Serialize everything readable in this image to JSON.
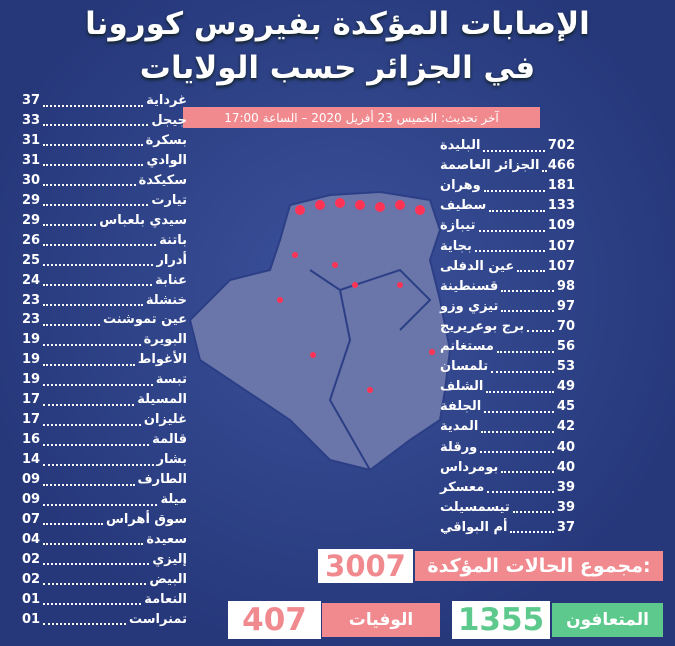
{
  "header": {
    "title_line1": "الإصابات المؤكدة بفيروس كورونا",
    "title_line2": "في الجزائر حسب الولايات",
    "update": "آخر تحديث: الخميس 23 أفريل 2020 – الساعة 17:00"
  },
  "right_list": [
    {
      "name": "البليدة",
      "count": "702"
    },
    {
      "name": "الجزائر العاصمة",
      "count": "466"
    },
    {
      "name": "وهران",
      "count": "181"
    },
    {
      "name": "سطيف",
      "count": "133"
    },
    {
      "name": "تيبازة",
      "count": "109"
    },
    {
      "name": "بجاية",
      "count": "107"
    },
    {
      "name": "عين الدفلى",
      "count": "107"
    },
    {
      "name": "قسنطينة",
      "count": "98"
    },
    {
      "name": "تيزي وزو",
      "count": "97"
    },
    {
      "name": "برج بوعريريج",
      "count": "70"
    },
    {
      "name": "مستغانم",
      "count": "56"
    },
    {
      "name": "تلمسان",
      "count": "53"
    },
    {
      "name": "الشلف",
      "count": "49"
    },
    {
      "name": "الجلفة",
      "count": "45"
    },
    {
      "name": "المدية",
      "count": "42"
    },
    {
      "name": "ورقلة",
      "count": "40"
    },
    {
      "name": "بومرداس",
      "count": "40"
    },
    {
      "name": "معسكر",
      "count": "39"
    },
    {
      "name": "تيسمسيلت",
      "count": "39"
    },
    {
      "name": "أم البواقي",
      "count": "37"
    }
  ],
  "left_list": [
    {
      "name": "غرداية",
      "count": "37"
    },
    {
      "name": "جيجل",
      "count": "33"
    },
    {
      "name": "بسكرة",
      "count": "31"
    },
    {
      "name": "الوادي",
      "count": "31"
    },
    {
      "name": "سكيكدة",
      "count": "30"
    },
    {
      "name": "تيارت",
      "count": "29"
    },
    {
      "name": "سيدي بلعباس",
      "count": "29"
    },
    {
      "name": "باتنة",
      "count": "26"
    },
    {
      "name": "أدرار",
      "count": "25"
    },
    {
      "name": "عنابة",
      "count": "24"
    },
    {
      "name": "خنشلة",
      "count": "23"
    },
    {
      "name": "عين تموشنت",
      "count": "23"
    },
    {
      "name": "البويرة",
      "count": "19"
    },
    {
      "name": "الأغواط",
      "count": "19"
    },
    {
      "name": "تبسة",
      "count": "19"
    },
    {
      "name": "المسيلة",
      "count": "17"
    },
    {
      "name": "غليزان",
      "count": "17"
    },
    {
      "name": "قالمة",
      "count": "16"
    },
    {
      "name": "بشار",
      "count": "14"
    },
    {
      "name": "الطارف",
      "count": "09"
    },
    {
      "name": "ميلة",
      "count": "09"
    },
    {
      "name": "سوق أهراس",
      "count": "07"
    },
    {
      "name": "سعيدة",
      "count": "04"
    },
    {
      "name": "إليزي",
      "count": "02"
    },
    {
      "name": "البيض",
      "count": "02"
    },
    {
      "name": "النعامة",
      "count": "01"
    },
    {
      "name": "تمنراست",
      "count": "01"
    }
  ],
  "totals": {
    "confirmed_label": "مجموع الحالات المؤكدة:",
    "confirmed": "3007",
    "recovered_label": "المتعافون",
    "recovered": "1355",
    "deaths_label": "الوفيات",
    "deaths": "407"
  }
}
